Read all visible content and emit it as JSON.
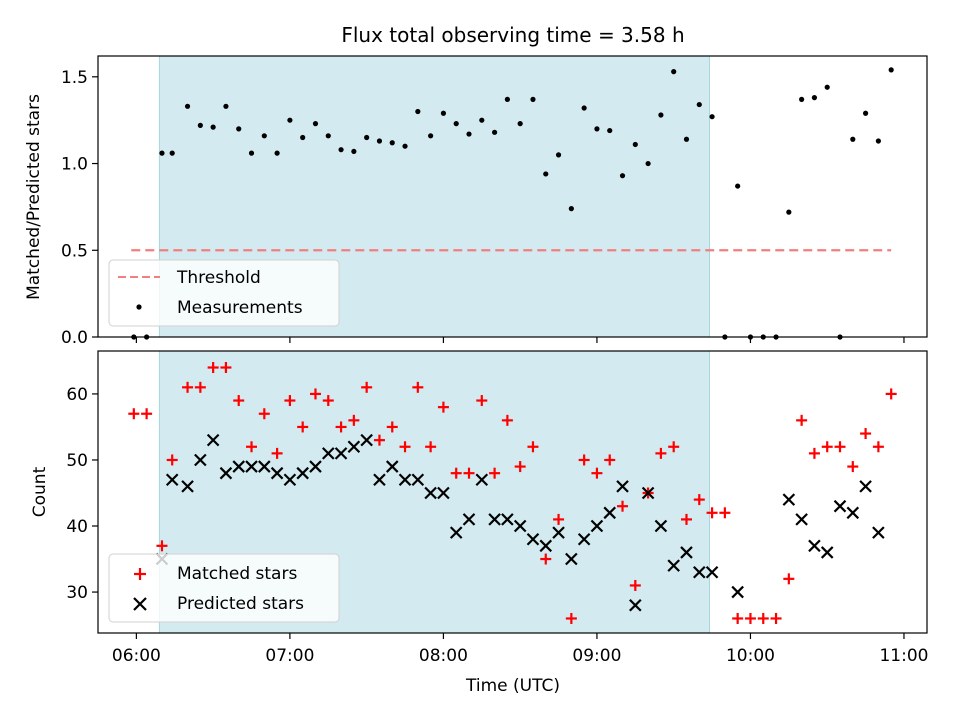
{
  "chart_data": [
    {
      "type": "scatter",
      "title": "Flux total observing time = 3.58 h",
      "ylabel": "Matched/Predicted stars",
      "xlabel": "",
      "x_unit": "hours UTC",
      "xlim": [
        5.75,
        11.15
      ],
      "ylim": [
        0,
        1.62
      ],
      "yticks": [
        "0.0",
        "0.5",
        "1.0",
        "1.5"
      ],
      "shaded_region": {
        "x_start": "06:09",
        "x_end": "09:44",
        "color": "#d3ebf0"
      },
      "threshold": {
        "name": "Threshold",
        "y": 0.5,
        "x_start": "05:58",
        "x_end": "10:55",
        "color": "#f08080",
        "style": "dashed"
      },
      "series": [
        {
          "name": "Measurements",
          "marker": "dot",
          "color": "#000000",
          "x": [
            "05:59",
            "06:04",
            "06:10",
            "06:14",
            "06:20",
            "06:25",
            "06:30",
            "06:35",
            "06:40",
            "06:45",
            "06:50",
            "06:55",
            "07:00",
            "07:05",
            "07:10",
            "07:15",
            "07:20",
            "07:25",
            "07:30",
            "07:35",
            "07:40",
            "07:45",
            "07:50",
            "07:55",
            "08:00",
            "08:05",
            "08:10",
            "08:15",
            "08:20",
            "08:25",
            "08:30",
            "08:35",
            "08:40",
            "08:45",
            "08:50",
            "08:55",
            "09:00",
            "09:05",
            "09:10",
            "09:15",
            "09:20",
            "09:25",
            "09:30",
            "09:35",
            "09:40",
            "09:45",
            "09:50",
            "09:55",
            "10:00",
            "10:05",
            "10:10",
            "10:15",
            "10:20",
            "10:25",
            "10:30",
            "10:35",
            "10:40",
            "10:45",
            "10:50",
            "10:55"
          ],
          "y": [
            0.0,
            0.0,
            1.06,
            1.06,
            1.33,
            1.22,
            1.21,
            1.33,
            1.2,
            1.06,
            1.16,
            1.06,
            1.25,
            1.15,
            1.23,
            1.16,
            1.08,
            1.07,
            1.15,
            1.13,
            1.12,
            1.1,
            1.3,
            1.16,
            1.29,
            1.23,
            1.17,
            1.25,
            1.18,
            1.37,
            1.23,
            1.37,
            0.94,
            1.05,
            0.74,
            1.32,
            1.2,
            1.19,
            0.93,
            1.11,
            1.0,
            1.28,
            1.53,
            1.14,
            1.34,
            1.27,
            0.0,
            0.87,
            0.0,
            0.0,
            0.0,
            0.72,
            1.37,
            1.38,
            1.44,
            0.0,
            1.14,
            1.29,
            1.13,
            1.54
          ]
        }
      ],
      "legend": {
        "placement": "lower-left",
        "entries": [
          "Threshold",
          "Measurements"
        ]
      }
    },
    {
      "type": "scatter",
      "title": "",
      "ylabel": "Count",
      "xlabel": "Time (UTC)",
      "xlim": [
        5.75,
        11.15
      ],
      "ylim": [
        23.8,
        66.5
      ],
      "yticks": [
        "30",
        "40",
        "50",
        "60"
      ],
      "xticks": [
        "06:00",
        "07:00",
        "08:00",
        "09:00",
        "10:00",
        "11:00"
      ],
      "shaded_region": {
        "x_start": "06:09",
        "x_end": "09:44",
        "color": "#d3ebf0"
      },
      "x": [
        "05:59",
        "06:04",
        "06:10",
        "06:14",
        "06:20",
        "06:25",
        "06:30",
        "06:35",
        "06:40",
        "06:45",
        "06:50",
        "06:55",
        "07:00",
        "07:05",
        "07:10",
        "07:15",
        "07:20",
        "07:25",
        "07:30",
        "07:35",
        "07:40",
        "07:45",
        "07:50",
        "07:55",
        "08:00",
        "08:05",
        "08:10",
        "08:15",
        "08:20",
        "08:25",
        "08:30",
        "08:35",
        "08:40",
        "08:45",
        "08:50",
        "08:55",
        "09:00",
        "09:05",
        "09:10",
        "09:15",
        "09:20",
        "09:25",
        "09:30",
        "09:35",
        "09:40",
        "09:45",
        "09:50",
        "09:55",
        "10:00",
        "10:05",
        "10:10",
        "10:15",
        "10:20",
        "10:25",
        "10:30",
        "10:35",
        "10:40",
        "10:45",
        "10:50",
        "10:55"
      ],
      "series": [
        {
          "name": "Matched stars",
          "marker": "plus",
          "color": "#ff0000",
          "values": [
            57,
            57,
            37,
            50,
            61,
            61,
            64,
            64,
            59,
            52,
            57,
            51,
            59,
            55,
            60,
            59,
            55,
            56,
            61,
            53,
            55,
            52,
            61,
            52,
            58,
            48,
            48,
            59,
            48,
            56,
            49,
            52,
            35,
            41,
            26,
            50,
            48,
            50,
            43,
            31,
            45,
            51,
            52,
            41,
            44,
            42,
            42,
            26,
            26,
            26,
            26,
            32,
            56,
            51,
            52,
            52,
            49,
            54,
            52,
            60
          ]
        },
        {
          "name": "Predicted stars",
          "marker": "x",
          "color": "#000000",
          "x": [
            "06:10",
            "06:14",
            "06:20",
            "06:25",
            "06:30",
            "06:35",
            "06:40",
            "06:45",
            "06:50",
            "06:55",
            "07:00",
            "07:05",
            "07:10",
            "07:15",
            "07:20",
            "07:25",
            "07:30",
            "07:35",
            "07:40",
            "07:45",
            "07:50",
            "07:55",
            "08:00",
            "08:05",
            "08:10",
            "08:15",
            "08:20",
            "08:25",
            "08:30",
            "08:35",
            "08:40",
            "08:45",
            "08:50",
            "08:55",
            "09:00",
            "09:05",
            "09:10",
            "09:15",
            "09:20",
            "09:25",
            "09:30",
            "09:35",
            "09:40",
            "09:45",
            "09:55",
            "10:15",
            "10:20",
            "10:25",
            "10:30",
            "10:35",
            "10:40",
            "10:45",
            "10:50",
            "10:55"
          ],
          "values": [
            35,
            47,
            46,
            50,
            53,
            48,
            49,
            49,
            49,
            48,
            47,
            48,
            49,
            51,
            51,
            52,
            53,
            47,
            49,
            47,
            47,
            45,
            45,
            39,
            41,
            47,
            41,
            41,
            40,
            38,
            37,
            39,
            35,
            38,
            40,
            42,
            46,
            28,
            45,
            40,
            34,
            36,
            33,
            33,
            30,
            44,
            41,
            37,
            36,
            43,
            42,
            46,
            39,
            null
          ]
        }
      ],
      "legend": {
        "placement": "lower-left",
        "entries": [
          "Matched stars",
          "Predicted stars"
        ]
      }
    }
  ]
}
